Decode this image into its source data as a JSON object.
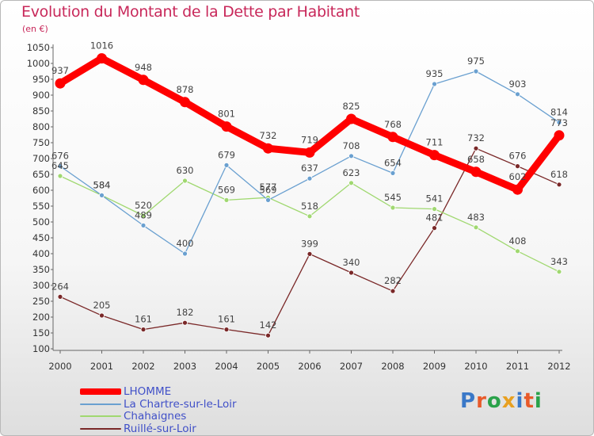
{
  "header": {
    "title": "Evolution du Montant de la Dette par Habitant",
    "subtitle": "(en €)"
  },
  "logo": {
    "text": "Proxiti",
    "colors": [
      "#3a78c8",
      "#e85a2a",
      "#2aa24a",
      "#e8a020",
      "#3a78c8",
      "#e85a2a",
      "#2aa24a"
    ]
  },
  "chart_data": {
    "type": "line",
    "x": [
      "2000",
      "2001",
      "2002",
      "2003",
      "2004",
      "2005",
      "2006",
      "2007",
      "2008",
      "2009",
      "2010",
      "2011",
      "2012"
    ],
    "ylim": [
      100,
      1050
    ],
    "yticks": [
      "100",
      "150",
      "200",
      "250",
      "300",
      "350",
      "400",
      "450",
      "500",
      "550",
      "600",
      "650",
      "700",
      "750",
      "800",
      "850",
      "900",
      "950",
      "1000",
      "1050"
    ],
    "grid": false,
    "legend_position": "bottom-left",
    "series": [
      {
        "name": "LHOMME",
        "color": "#ff0000",
        "values": [
          937,
          1016,
          948,
          878,
          801,
          732,
          719,
          825,
          768,
          711,
          658,
          602,
          773
        ],
        "labels": [
          "937",
          "1016",
          "948",
          "878",
          "801",
          "732",
          "719",
          "825",
          "768",
          "711",
          "658",
          "602",
          "773"
        ]
      },
      {
        "name": "La Chartre-sur-le-Loir",
        "color": "#6aa0d0",
        "values": [
          676,
          584,
          489,
          400,
          679,
          569,
          637,
          708,
          654,
          935,
          975,
          903,
          814
        ],
        "labels": [
          "676",
          "584",
          "489",
          "400",
          "679",
          "569",
          "637",
          "708",
          "654",
          "935",
          "975",
          "903",
          "814"
        ]
      },
      {
        "name": "Chahaignes",
        "color": "#a0d870",
        "values": [
          645,
          584,
          520,
          630,
          569,
          577,
          518,
          623,
          545,
          541,
          483,
          408,
          343
        ],
        "labels": [
          "645",
          "584",
          "520",
          "630",
          "569",
          "577",
          "518",
          "623",
          "545",
          "541",
          "483",
          "408",
          "343"
        ]
      },
      {
        "name": "Ruillé-sur-Loir",
        "color": "#7a2828",
        "values": [
          264,
          205,
          161,
          182,
          161,
          142,
          399,
          340,
          282,
          481,
          732,
          676,
          618
        ],
        "labels": [
          "264",
          "205",
          "161",
          "182",
          "161",
          "142",
          "399",
          "340",
          "282",
          "481",
          "732",
          "676",
          "618"
        ]
      }
    ]
  }
}
